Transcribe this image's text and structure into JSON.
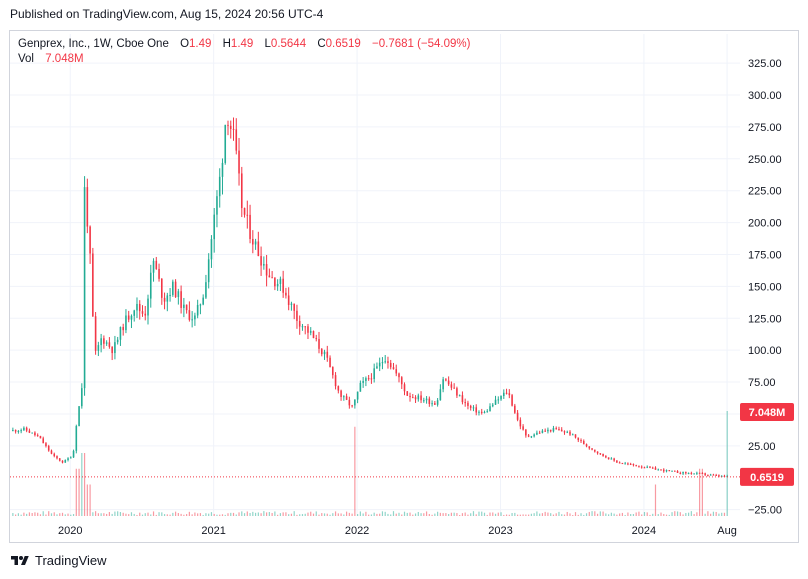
{
  "header": {
    "published": "Published on TradingView.com, Aug 15, 2024 20:56 UTC-4"
  },
  "legend": {
    "symbol": "Genprex, Inc., 1W, Cboe One",
    "o_key": "O",
    "o_val": "1.49",
    "h_key": "H",
    "h_val": "1.49",
    "l_key": "L",
    "l_val": "0.5644",
    "c_key": "C",
    "c_val": "0.6519",
    "change": "−0.7681 (−54.09%)",
    "vol_key": "Vol",
    "vol_val": "7.048M"
  },
  "footer": {
    "brand": "TradingView",
    "logo_icon": "tradingview-logo-icon"
  },
  "colors": {
    "up": "#22ab94",
    "down": "#f23645",
    "grid": "#f0f3fa",
    "axis_text": "#131722"
  },
  "chart_data": {
    "type": "candlestick",
    "title": "Genprex, Inc., 1W, Cboe One",
    "y_ticks": [
      "325.00",
      "300.00",
      "275.00",
      "250.00",
      "225.00",
      "200.00",
      "175.00",
      "150.00",
      "125.00",
      "100.00",
      "75.00",
      "50.00",
      "25.00",
      "−25.00"
    ],
    "y_tick_values": [
      325,
      300,
      275,
      250,
      225,
      200,
      175,
      150,
      125,
      100,
      75,
      50,
      25,
      -25
    ],
    "ylim": [
      -30,
      340
    ],
    "x_ticks": [
      "2020",
      "2021",
      "2022",
      "2023",
      "2024",
      "Aug"
    ],
    "x_tick_values": [
      2020.0,
      2021.0,
      2022.0,
      2023.0,
      2024.0,
      2024.58
    ],
    "xlim": [
      2019.58,
      2024.67
    ],
    "last_price": "0.6519",
    "last_volume": "7.048M",
    "grid": true,
    "price_path": [
      [
        2019.6,
        37
      ],
      [
        2019.68,
        38
      ],
      [
        2019.78,
        32
      ],
      [
        2019.88,
        17
      ],
      [
        2019.95,
        12
      ],
      [
        2020.02,
        18
      ],
      [
        2020.05,
        50
      ],
      [
        2020.08,
        65
      ],
      [
        2020.1,
        225
      ],
      [
        2020.13,
        190
      ],
      [
        2020.17,
        95
      ],
      [
        2020.22,
        110
      ],
      [
        2020.3,
        100
      ],
      [
        2020.37,
        120
      ],
      [
        2020.45,
        135
      ],
      [
        2020.52,
        128
      ],
      [
        2020.58,
        170
      ],
      [
        2020.65,
        140
      ],
      [
        2020.72,
        150
      ],
      [
        2020.8,
        130
      ],
      [
        2020.87,
        125
      ],
      [
        2020.93,
        145
      ],
      [
        2021.0,
        200
      ],
      [
        2021.05,
        240
      ],
      [
        2021.09,
        290
      ],
      [
        2021.14,
        265
      ],
      [
        2021.2,
        210
      ],
      [
        2021.28,
        185
      ],
      [
        2021.38,
        160
      ],
      [
        2021.48,
        150
      ],
      [
        2021.58,
        125
      ],
      [
        2021.68,
        112
      ],
      [
        2021.78,
        95
      ],
      [
        2021.88,
        65
      ],
      [
        2021.97,
        55
      ],
      [
        2022.02,
        72
      ],
      [
        2022.1,
        80
      ],
      [
        2022.2,
        95
      ],
      [
        2022.28,
        80
      ],
      [
        2022.35,
        65
      ],
      [
        2022.45,
        62
      ],
      [
        2022.55,
        58
      ],
      [
        2022.6,
        78
      ],
      [
        2022.68,
        68
      ],
      [
        2022.78,
        55
      ],
      [
        2022.88,
        50
      ],
      [
        2022.95,
        58
      ],
      [
        2023.05,
        68
      ],
      [
        2023.12,
        45
      ],
      [
        2023.18,
        32
      ],
      [
        2023.28,
        36
      ],
      [
        2023.38,
        38
      ],
      [
        2023.48,
        35
      ],
      [
        2023.6,
        25
      ],
      [
        2023.7,
        18
      ],
      [
        2023.82,
        12
      ],
      [
        2023.92,
        10
      ],
      [
        2024.02,
        8
      ],
      [
        2024.12,
        6
      ],
      [
        2024.25,
        4
      ],
      [
        2024.4,
        3
      ],
      [
        2024.5,
        1.5
      ],
      [
        2024.58,
        0.65
      ]
    ],
    "volume_spikes": [
      [
        2020.05,
        0.45
      ],
      [
        2020.09,
        0.6
      ],
      [
        2020.13,
        0.3
      ],
      [
        2021.98,
        0.85
      ],
      [
        2024.08,
        0.3
      ],
      [
        2024.4,
        0.45
      ],
      [
        2024.58,
        1.0
      ]
    ]
  }
}
